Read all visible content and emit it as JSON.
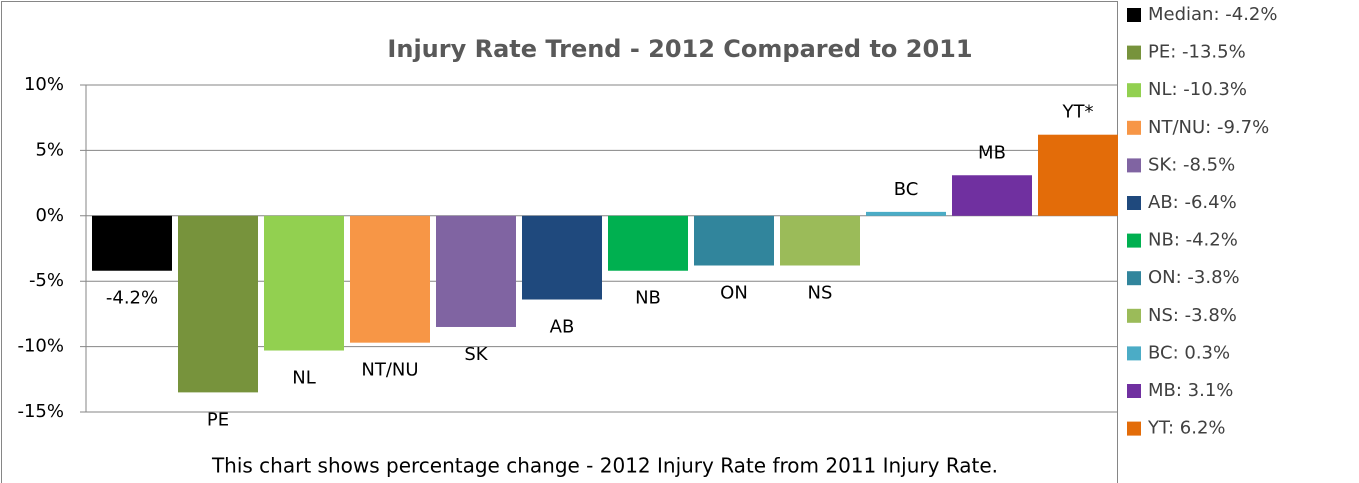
{
  "chart_data": {
    "type": "bar",
    "title": "Injury Rate Trend - 2012 Compared to 2011",
    "caption": "This chart shows percentage change - 2012 Injury Rate from 2011 Injury Rate.",
    "categories": [
      "-4.2%",
      "PE",
      "NL",
      "NT/NU",
      "SK",
      "AB",
      "NB",
      "ON",
      "NS",
      "BC",
      "MB",
      "YT*"
    ],
    "values": [
      -4.2,
      -13.5,
      -10.3,
      -9.7,
      -8.5,
      -6.4,
      -4.2,
      -3.8,
      -3.8,
      0.3,
      3.1,
      6.2
    ],
    "colors": [
      "#000000",
      "#77933c",
      "#92d050",
      "#f79646",
      "#8064a2",
      "#1f497d",
      "#00b050",
      "#31859c",
      "#9bbb59",
      "#4bacc6",
      "#7030a0",
      "#e36c09"
    ],
    "legend": [
      "Median: -4.2%",
      "PE: -13.5%",
      "NL: -10.3%",
      "NT/NU: -9.7%",
      "SK: -8.5%",
      "AB: -6.4%",
      "NB: -4.2%",
      "ON: -3.8%",
      "NS: -3.8%",
      "BC: 0.3%",
      "MB: 3.1%",
      "YT: 6.2%"
    ],
    "ylim": [
      -15,
      10
    ],
    "yticks": [
      {
        "value": -15,
        "label": "-15%"
      },
      {
        "value": -10,
        "label": "-10%"
      },
      {
        "value": -5,
        "label": "-5%"
      },
      {
        "value": 0,
        "label": "0%"
      },
      {
        "value": 5,
        "label": "5%"
      },
      {
        "value": 10,
        "label": "10%"
      }
    ],
    "grid": true
  }
}
